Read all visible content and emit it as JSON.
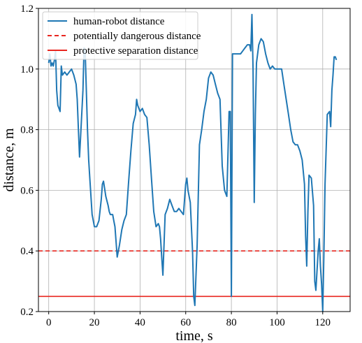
{
  "chart_data": {
    "type": "line",
    "xlabel": "time, s",
    "ylabel": "distance, m",
    "xlim": [
      -4.5,
      132
    ],
    "ylim": [
      0.2,
      1.2
    ],
    "xticks": [
      0,
      20,
      40,
      60,
      80,
      100,
      120
    ],
    "yticks": [
      0.2,
      0.4,
      0.6,
      0.8,
      1.0,
      1.2
    ],
    "tick_labels_x": [
      "0",
      "20",
      "40",
      "60",
      "80",
      "100",
      "120"
    ],
    "tick_labels_y": [
      "0.2",
      "0.4",
      "0.6",
      "0.8",
      "1.0",
      "1.2"
    ],
    "grid": true,
    "legend_position": "top-left",
    "series": [
      {
        "name": "human-robot distance",
        "color": "#1f77b4",
        "style": "solid",
        "x": [
          0,
          0.5,
          1,
          1.5,
          2,
          2.5,
          3,
          3.5,
          4,
          4.5,
          5,
          5.5,
          6,
          7,
          8,
          9,
          10,
          11,
          12,
          12.5,
          13,
          13.5,
          14,
          15,
          15.5,
          16,
          17,
          17.5,
          18,
          19,
          20,
          21,
          22,
          23,
          23.5,
          24,
          25,
          26,
          26.5,
          27,
          28,
          28.5,
          29,
          30,
          31,
          32,
          33,
          34,
          35,
          36,
          37,
          38,
          38.5,
          39,
          40,
          41,
          42,
          43,
          44,
          45,
          46,
          47,
          48,
          48.5,
          49,
          49.5,
          50,
          50.5,
          51,
          52,
          53,
          54,
          55,
          56,
          57,
          58,
          59,
          60,
          60.5,
          61,
          62,
          63,
          63.5,
          64,
          65,
          66,
          67,
          68,
          69,
          70,
          71,
          72,
          73,
          74,
          75,
          76,
          77,
          78,
          79,
          79.5,
          80,
          80.5,
          81,
          82,
          83,
          84,
          85,
          86,
          87,
          88,
          88.5,
          89,
          89.5,
          90,
          90.5,
          91,
          92,
          93,
          94,
          95,
          96,
          97,
          98,
          99,
          100,
          101,
          102,
          103,
          104,
          105,
          106,
          107,
          108,
          109,
          110,
          111,
          112,
          112.5,
          113,
          113.5,
          114,
          115,
          116,
          116.5,
          117,
          118,
          118.5,
          119,
          119.5,
          120,
          120.5,
          121,
          122,
          123,
          123.5,
          124,
          124.5,
          125,
          125.5,
          126
        ],
        "y": [
          1.02,
          1.05,
          1.01,
          1.02,
          1.01,
          1.03,
          1.06,
          0.93,
          0.88,
          0.87,
          0.86,
          1.01,
          0.98,
          0.99,
          0.98,
          0.99,
          1.0,
          0.98,
          0.95,
          0.9,
          0.8,
          0.71,
          0.78,
          0.93,
          1.07,
          1.05,
          0.8,
          0.7,
          0.64,
          0.52,
          0.48,
          0.48,
          0.5,
          0.57,
          0.62,
          0.63,
          0.58,
          0.55,
          0.53,
          0.52,
          0.52,
          0.5,
          0.48,
          0.38,
          0.42,
          0.47,
          0.5,
          0.52,
          0.63,
          0.73,
          0.82,
          0.85,
          0.9,
          0.88,
          0.86,
          0.87,
          0.85,
          0.84,
          0.75,
          0.64,
          0.53,
          0.48,
          0.49,
          0.48,
          0.44,
          0.38,
          0.32,
          0.42,
          0.52,
          0.54,
          0.57,
          0.55,
          0.53,
          0.53,
          0.54,
          0.53,
          0.52,
          0.62,
          0.64,
          0.6,
          0.56,
          0.4,
          0.25,
          0.22,
          0.42,
          0.75,
          0.8,
          0.86,
          0.9,
          0.97,
          0.99,
          0.98,
          0.95,
          0.92,
          0.9,
          0.68,
          0.6,
          0.58,
          0.86,
          0.86,
          0.25,
          1.05,
          1.05,
          1.05,
          1.05,
          1.05,
          1.06,
          1.07,
          1.08,
          1.08,
          1.06,
          1.18,
          1.0,
          0.56,
          0.85,
          1.02,
          1.08,
          1.1,
          1.09,
          1.05,
          1.02,
          1.0,
          1.01,
          1.0,
          1.0,
          1.0,
          1.0,
          0.95,
          0.9,
          0.85,
          0.8,
          0.76,
          0.75,
          0.75,
          0.73,
          0.7,
          0.62,
          0.45,
          0.35,
          0.53,
          0.65,
          0.64,
          0.55,
          0.3,
          0.27,
          0.4,
          0.44,
          0.35,
          0.29,
          0.2,
          0.38,
          0.62,
          0.85,
          0.86,
          0.81,
          0.93,
          0.98,
          1.04,
          1.04,
          1.03
        ]
      },
      {
        "name": "potentially dangerous distance",
        "color": "#e8261f",
        "style": "dashed",
        "y_const": 0.4
      },
      {
        "name": "protective separation distance",
        "color": "#e8261f",
        "style": "solid",
        "y_const": 0.25
      }
    ]
  }
}
